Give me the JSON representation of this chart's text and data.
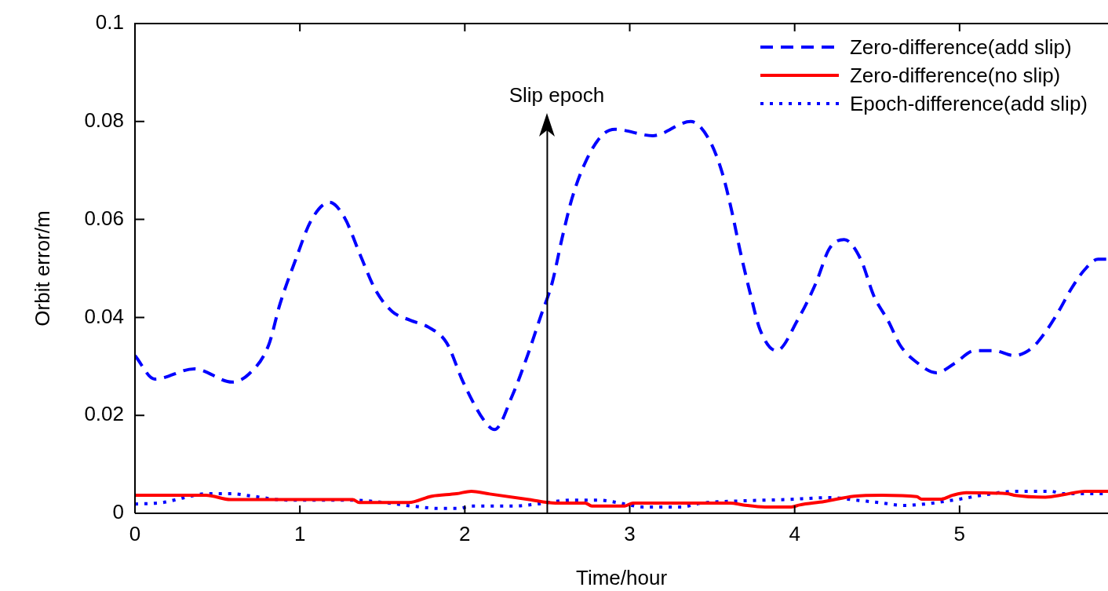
{
  "chart_data": {
    "type": "line",
    "xlabel": "Time/hour",
    "ylabel": "Orbit error/m",
    "xlim": [
      0,
      5.9
    ],
    "ylim": [
      0,
      0.1
    ],
    "xticks": [
      0,
      1,
      2,
      3,
      4,
      5
    ],
    "yticks": [
      0,
      0.02,
      0.04,
      0.06,
      0.08,
      0.1
    ],
    "legend": "top right",
    "marker": "none",
    "ref_lines": [
      {
        "axis": "x",
        "value": 2.5,
        "label": "Slip epoch",
        "color": "#000000"
      }
    ],
    "series": [
      {
        "name": "Zero-difference(add slip)",
        "color": "#0000ff",
        "line_style": "dashed",
        "x": [
          0,
          0.12,
          0.36,
          0.59,
          0.69,
          0.81,
          0.88,
          0.97,
          1.07,
          1.18,
          1.27,
          1.37,
          1.46,
          1.56,
          1.67,
          1.78,
          1.89,
          1.99,
          2.12,
          2.18,
          2.29,
          2.38,
          2.46,
          2.53,
          2.59,
          2.65,
          2.73,
          2.83,
          2.91,
          3.14,
          3.37,
          3.48,
          3.56,
          3.62,
          3.67,
          3.73,
          3.79,
          3.89,
          4.02,
          4.13,
          4.21,
          4.3,
          4.4,
          4.48,
          4.57,
          4.64,
          4.73,
          4.86,
          4.97,
          5.09,
          5.21,
          5.33,
          5.44,
          5.52,
          5.6,
          5.68,
          5.76,
          5.84,
          5.9
        ],
        "values": [
          0.0322,
          0.0274,
          0.0295,
          0.0268,
          0.0284,
          0.0343,
          0.0428,
          0.0514,
          0.0599,
          0.0635,
          0.0604,
          0.0524,
          0.0455,
          0.0412,
          0.0394,
          0.038,
          0.0348,
          0.0268,
          0.0188,
          0.0171,
          0.0242,
          0.0322,
          0.0402,
          0.0471,
          0.0562,
          0.0643,
          0.0716,
          0.0771,
          0.0784,
          0.0771,
          0.08,
          0.0764,
          0.0696,
          0.0615,
          0.0535,
          0.045,
          0.0375,
          0.0332,
          0.0396,
          0.0471,
          0.054,
          0.0559,
          0.0519,
          0.0444,
          0.0391,
          0.0343,
          0.0311,
          0.0287,
          0.0306,
          0.0332,
          0.0332,
          0.0322,
          0.0338,
          0.037,
          0.0412,
          0.046,
          0.0498,
          0.0519,
          0.0519
        ]
      },
      {
        "name": "Zero-difference(no slip)",
        "color": "#ff0000",
        "line_style": "solid",
        "x": [
          0,
          0.43,
          0.58,
          1.32,
          1.36,
          1.66,
          1.8,
          1.95,
          2.04,
          2.14,
          2.39,
          2.55,
          2.73,
          2.77,
          2.97,
          3.02,
          3.61,
          3.69,
          3.82,
          3.98,
          4.03,
          4.18,
          4.36,
          4.53,
          4.74,
          4.77,
          4.89,
          4.96,
          5.04,
          5.29,
          5.33,
          5.52,
          5.63,
          5.76,
          5.9
        ],
        "values": [
          0.0037,
          0.0037,
          0.0028,
          0.0028,
          0.0022,
          0.0022,
          0.0035,
          0.004,
          0.0045,
          0.004,
          0.0028,
          0.0021,
          0.0021,
          0.0015,
          0.0015,
          0.0021,
          0.0021,
          0.0017,
          0.0013,
          0.0013,
          0.0017,
          0.0024,
          0.0035,
          0.0037,
          0.0034,
          0.0029,
          0.0029,
          0.0037,
          0.0042,
          0.004,
          0.0037,
          0.0033,
          0.0038,
          0.0045,
          0.0045
        ]
      },
      {
        "name": "Epoch-difference(add slip)",
        "color": "#0000ff",
        "line_style": "dotted",
        "x": [
          0,
          0.17,
          0.3,
          0.43,
          0.58,
          0.71,
          0.92,
          1.32,
          1.51,
          1.7,
          1.84,
          1.97,
          2.04,
          2.31,
          2.44,
          2.65,
          2.81,
          2.97,
          3.08,
          3.31,
          3.44,
          3.65,
          3.94,
          4.22,
          4.37,
          4.51,
          4.66,
          4.79,
          5,
          5.14,
          5.34,
          5.55,
          5.63,
          5.82,
          5.9
        ],
        "values": [
          0.0019,
          0.0022,
          0.0032,
          0.004,
          0.004,
          0.0035,
          0.0027,
          0.0027,
          0.0022,
          0.0014,
          0.001,
          0.001,
          0.0015,
          0.0015,
          0.0019,
          0.0027,
          0.0027,
          0.0019,
          0.0013,
          0.0013,
          0.0021,
          0.0025,
          0.0028,
          0.0032,
          0.0027,
          0.0022,
          0.0016,
          0.0019,
          0.0029,
          0.0037,
          0.0045,
          0.0045,
          0.004,
          0.004,
          0.004
        ]
      }
    ]
  }
}
